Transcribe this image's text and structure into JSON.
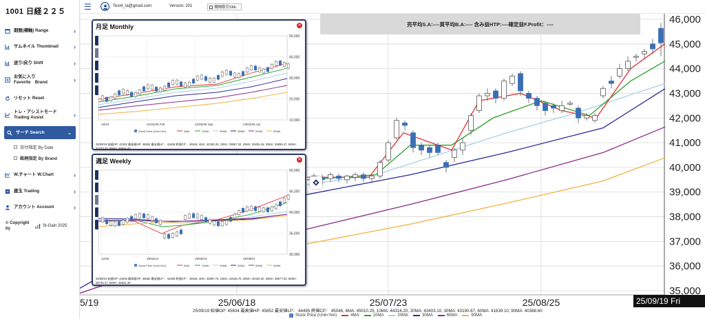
{
  "app": {
    "title": "1001 日経２２５"
  },
  "topbar": {
    "email": "Test4_ta@gmail.com",
    "version": "Version: 201",
    "sml_label": "現物取引SML"
  },
  "sidebar": {
    "items": [
      {
        "label": "期間(横軸) Range",
        "icon": "calendar-icon"
      },
      {
        "label": "サムネイル Thumbnail",
        "icon": "thumbnail-chart-icon"
      },
      {
        "label": "送り/戻り Shift",
        "icon": "shift-chart-icon"
      },
      {
        "label": "お気に入り",
        "label2": "Favorite　Brand",
        "icon": "favorite-icon"
      },
      {
        "label": "リセット Reset",
        "icon": "reset-icon"
      },
      {
        "label": "トレ・アシストモード",
        "label2": "Trading Assist",
        "icon": "assist-icon"
      },
      {
        "label": "サーチ Search",
        "icon": "search-icon"
      },
      {
        "label": "W.チャート W.Chart",
        "icon": "wchart-icon"
      },
      {
        "label": "建玉 Trading",
        "icon": "trading-icon"
      },
      {
        "label": "アカウント Account",
        "icon": "account-icon"
      }
    ],
    "subitems": [
      {
        "label": "日付指定 By Date"
      },
      {
        "label": "銘柄指定 By Brand"
      }
    ],
    "copyright": {
      "left": "© Copyright by",
      "brand": "St-Gain",
      "year": "2025"
    }
  },
  "pl_banner": "売平均S.A:----買平均B.A:---- 含み益HTP:----確定益F.Profit：----",
  "monthly": {
    "title": "月足 Monthly",
    "buttons": [
      "S1",
      "S2",
      "S3",
      "S4",
      "S5"
    ],
    "xticks": [
      "18/10",
      "21/02/26 Feb",
      "22/09/30 Sep",
      "24/04/30 Apr"
    ],
    "yticks": [
      "50,000",
      "40,000",
      "30,000",
      "20,000",
      "10,000"
    ],
    "legend": [
      "Stock Price (Unit=Yen)",
      "4MA",
      "10MA",
      "20MA",
      "30MA",
      "60MA",
      "90MA"
    ],
    "info": "25/09/19 始値OP: 42282 最高値HP: 45852 最安値LP： 41835 終値CP： 45046, 4MA: 42330.25, 10MA: 39557.20, 20MA: 39205.45, 30MA: 36959.47, 60MA: 32273.23, 90MA: 26824.42"
  },
  "weekly": {
    "title": "週足 Weekly",
    "buttons": [
      "S1",
      "S2",
      "S3",
      "S4",
      "S5"
    ],
    "xticks": [
      "12/30",
      "25/02/14",
      "25/05/23",
      "25/08/01"
    ],
    "yticks": [
      "50,000",
      "45,000",
      "40,000",
      "35,000",
      "30,000"
    ],
    "legend": [
      "Stock Price (Unit=Yen)",
      "4MA",
      "10MA",
      "20MA",
      "30MA",
      "60MA",
      "90MA"
    ],
    "info": "25/09/19 始値OP: 44948 最高値HP: 45852 最安値LP： 44495 終値CP： 45046, 4MA: 43887.75, 10MA: 42545.70, 20MA: 40439.20, 30MA: 38977.03, 60MA: 38749.47, 90MA: 38631.38"
  },
  "main_chart": {
    "yticks": [
      "46,000",
      "45,000",
      "44,000",
      "43,000",
      "42,000",
      "41,000",
      "40,000",
      "39,000",
      "38,000",
      "37,000",
      "36,000",
      "35,000"
    ],
    "xticks": [
      "25/05/19",
      "25/06/18",
      "25/07/23",
      "25/08/25"
    ],
    "date_tag": "25/09/19 Fri",
    "info": "25/09/19 始値OP: 45634 最高値HP: 45852 最安値LP： 44495 終値CP： 45046, 4MA: 45010.25, 10MA: 44314.20, 20MA: 43403.10, 30MA: 43190.67, 60MA: 41639.10, 90MA: 40388.60",
    "legend": [
      "Stock Price (Unit=Yen)",
      "4MA",
      "10MA",
      "20MA",
      "30MA",
      "60MA",
      "90MA"
    ]
  },
  "colors": {
    "up": "#ffffff",
    "down": "#3a6fb5",
    "ma4": "#e03030",
    "ma10": "#2aa02a",
    "ma20": "#a8d0e6",
    "ma30": "#2a2a9a",
    "ma60": "#8a2a8a",
    "ma90": "#f0b040",
    "accent": "#2f5aa0"
  }
}
